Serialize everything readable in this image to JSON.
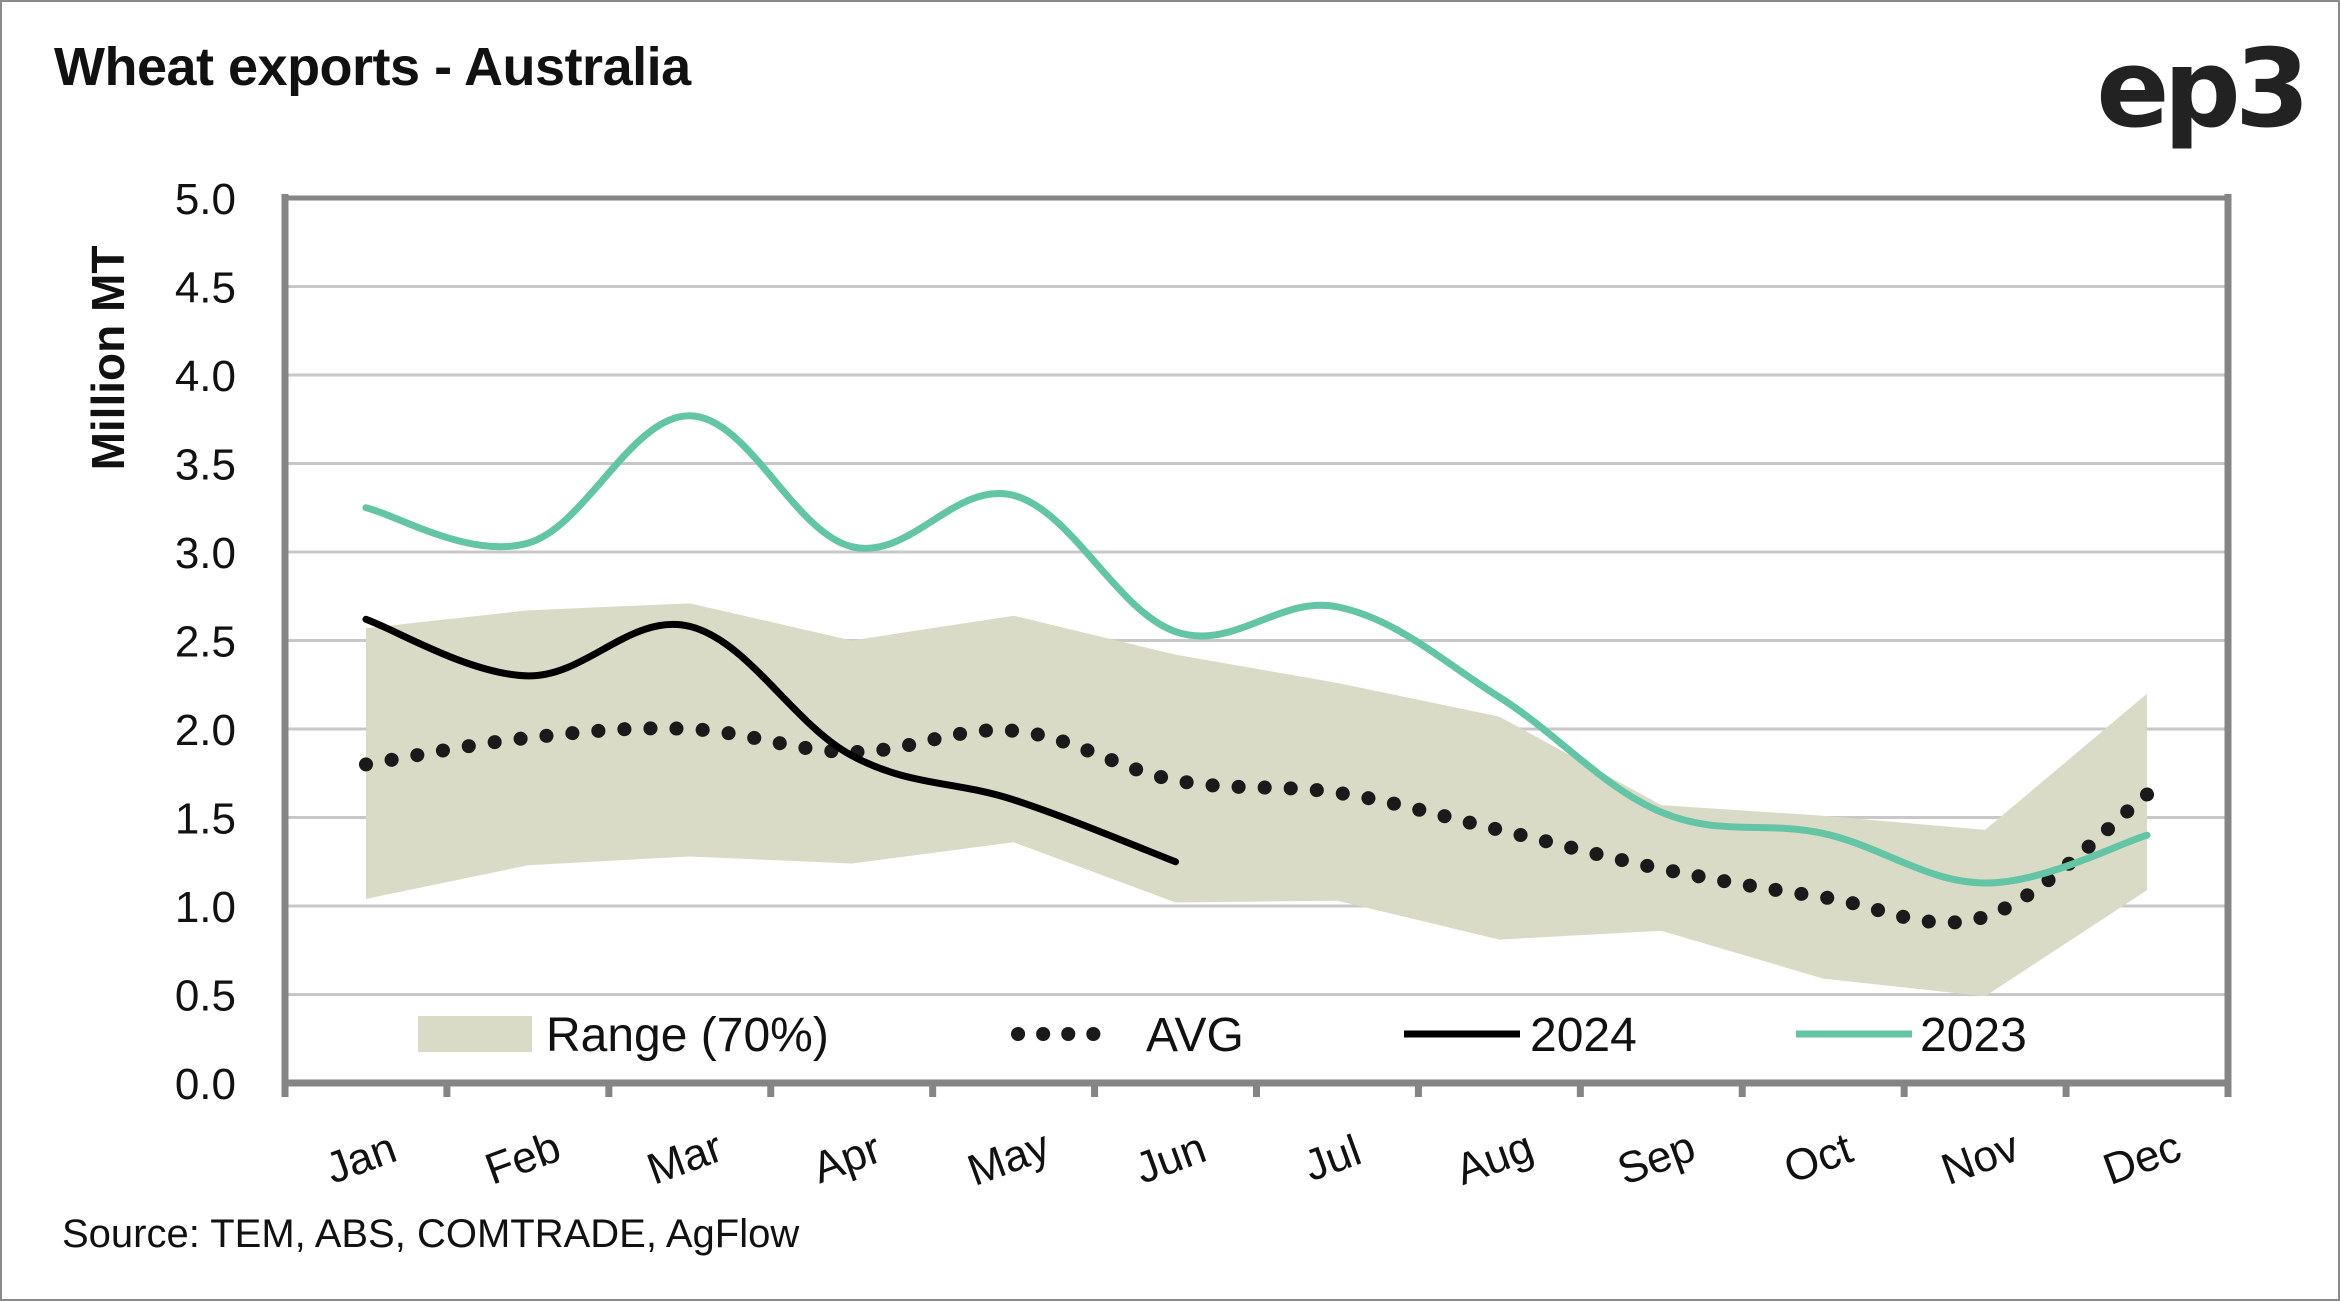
{
  "header": {
    "title": "Wheat exports - Australia",
    "logo": "ep3"
  },
  "footer": {
    "source": "Source: TEM, ABS, COMTRADE, AgFlow"
  },
  "colors": {
    "range": "#d9dbc6",
    "avg": "#1a1a1a",
    "y2024": "#000000",
    "y2023": "#63c5a6",
    "axis": "#858585",
    "grid": "#c8c8c8"
  },
  "chart_data": {
    "type": "line",
    "title": "Wheat exports - Australia",
    "xlabel": "",
    "ylabel": "Million MT",
    "ylim": [
      0,
      5
    ],
    "yticks": [
      "0.0",
      "0.5",
      "1.0",
      "1.5",
      "2.0",
      "2.5",
      "3.0",
      "3.5",
      "4.0",
      "4.5",
      "5.0"
    ],
    "grid": true,
    "legend_position": "bottom-inside",
    "categories": [
      "Jan",
      "Feb",
      "Mar",
      "Apr",
      "May",
      "Jun",
      "Jul",
      "Aug",
      "Sep",
      "Oct",
      "Nov",
      "Dec"
    ],
    "range": {
      "name": "Range (70%)",
      "upper": [
        2.57,
        2.67,
        2.71,
        2.5,
        2.64,
        2.42,
        2.26,
        2.07,
        1.57,
        1.51,
        1.43,
        2.2
      ],
      "lower": [
        1.04,
        1.23,
        1.28,
        1.24,
        1.36,
        1.02,
        1.03,
        0.81,
        0.86,
        0.59,
        0.49,
        1.09
      ]
    },
    "series": [
      {
        "name": "AVG",
        "style": "dotted",
        "values": [
          1.8,
          1.95,
          2.0,
          1.87,
          1.99,
          1.71,
          1.64,
          1.43,
          1.21,
          1.05,
          0.94,
          1.63
        ]
      },
      {
        "name": "2024",
        "style": "solid",
        "values": [
          2.62,
          2.3,
          2.58,
          1.85,
          1.6,
          1.25,
          null,
          null,
          null,
          null,
          null,
          null
        ]
      },
      {
        "name": "2023",
        "style": "solid",
        "values": [
          3.25,
          3.05,
          3.77,
          3.03,
          3.32,
          2.55,
          2.69,
          2.18,
          1.53,
          1.41,
          1.13,
          1.4
        ]
      }
    ],
    "legend": [
      "Range (70%)",
      "AVG",
      "2024",
      "2023"
    ]
  }
}
